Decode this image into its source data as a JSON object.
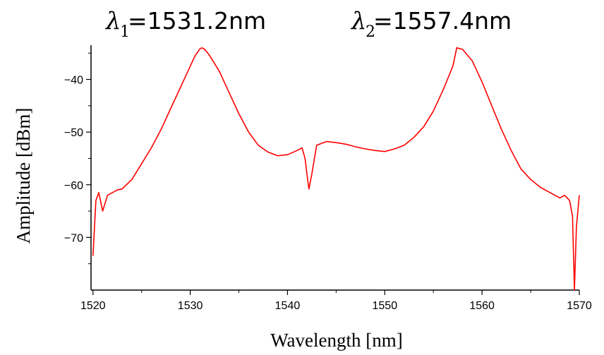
{
  "chart_data": {
    "type": "line",
    "xlabel": "Wavelength [nm]",
    "ylabel": "Amplitude [dBm]",
    "xlim": [
      1519.8,
      1570
    ],
    "ylim": [
      -80,
      -33.5
    ],
    "xticks": [
      1520,
      1530,
      1540,
      1550,
      1560,
      1570
    ],
    "yticks": [
      -40,
      -50,
      -60,
      -70
    ],
    "color": "#ff0000",
    "annotations": [
      {
        "symbol": "λ",
        "subscript": "1",
        "text": " =1531.2nm"
      },
      {
        "symbol": "λ",
        "subscript": "2",
        "text": " =1557.4nm"
      }
    ],
    "series": [
      {
        "x": [
          1520,
          1520.3,
          1520.6,
          1521,
          1521.5,
          1522,
          1522.5,
          1523,
          1524,
          1525,
          1526,
          1527,
          1528,
          1529,
          1530,
          1530.5,
          1531,
          1531.2,
          1531.5,
          1532,
          1533,
          1534,
          1535,
          1536,
          1537,
          1538,
          1539,
          1540,
          1541,
          1541.5,
          1541.8,
          1542,
          1542.2,
          1542.5,
          1543,
          1544,
          1545,
          1546,
          1547,
          1548,
          1549,
          1550,
          1551,
          1552,
          1553,
          1554,
          1555,
          1556,
          1557,
          1557.4,
          1558,
          1559,
          1560,
          1561,
          1562,
          1563,
          1564,
          1565,
          1566,
          1567,
          1568,
          1568.5,
          1569,
          1569.3,
          1569.5,
          1569.7,
          1570
        ],
        "y": [
          -73.5,
          -63,
          -61.5,
          -65,
          -62,
          -61.5,
          -61,
          -60.8,
          -59,
          -56,
          -53,
          -49.5,
          -45.5,
          -41.5,
          -37.5,
          -35.5,
          -34.2,
          -34,
          -34.3,
          -35.5,
          -38.5,
          -42.5,
          -46.5,
          -50,
          -52.5,
          -53.8,
          -54.5,
          -54.3,
          -53.5,
          -53,
          -55,
          -58,
          -60.8,
          -58,
          -52.5,
          -51.8,
          -52,
          -52.3,
          -52.8,
          -53.2,
          -53.5,
          -53.7,
          -53.2,
          -52.5,
          -51,
          -49,
          -46,
          -42,
          -37.5,
          -34,
          -34.3,
          -36.5,
          -40.5,
          -45,
          -49.5,
          -53.5,
          -57,
          -59,
          -60.5,
          -61.5,
          -62.5,
          -62,
          -63,
          -66,
          -80,
          -68,
          -62
        ]
      }
    ]
  }
}
